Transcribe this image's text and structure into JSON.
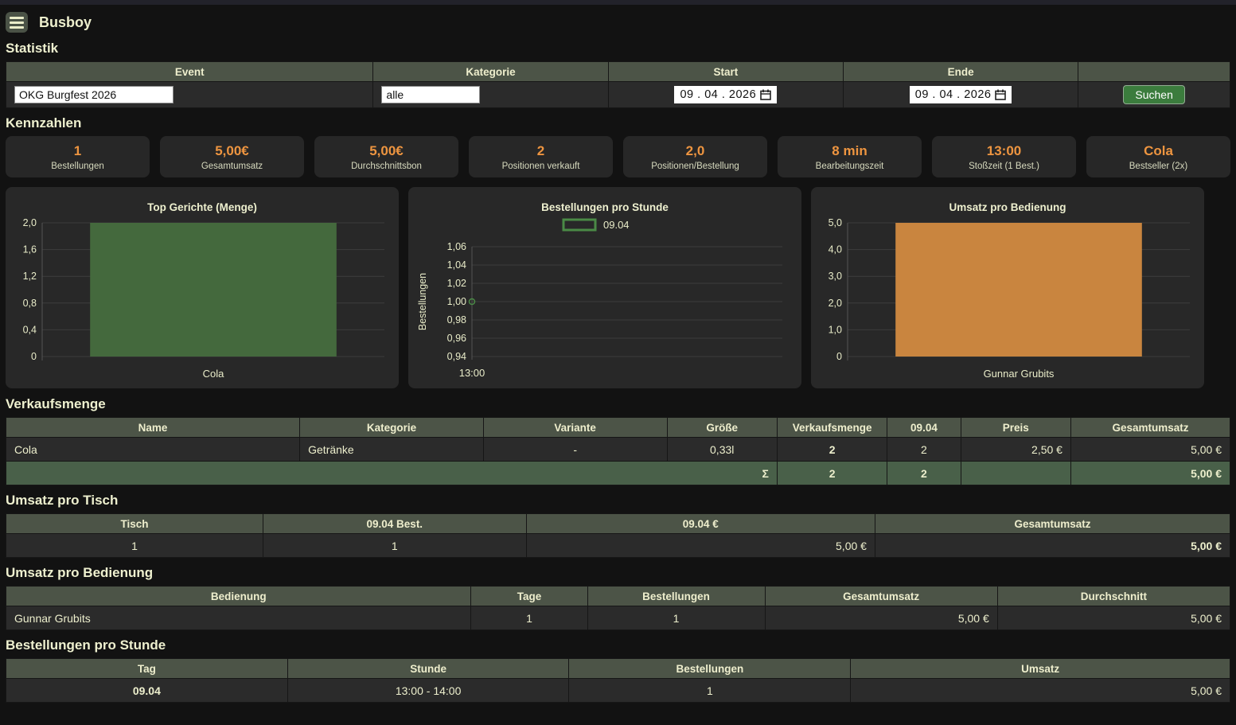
{
  "app": {
    "title": "Busboy"
  },
  "statistik": {
    "heading": "Statistik",
    "search": {
      "headers": [
        "Event",
        "Kategorie",
        "Start",
        "Ende",
        ""
      ],
      "event_value": "OKG Burgfest 2026",
      "kategorie_value": "alle",
      "start_value": "09 . 04 . 2026",
      "ende_value": "09 . 04 . 2026",
      "search_button": "Suchen"
    }
  },
  "kennzahlen": {
    "heading": "Kennzahlen",
    "cards": [
      {
        "value": "1",
        "label": "Bestellungen"
      },
      {
        "value": "5,00€",
        "label": "Gesamtumsatz"
      },
      {
        "value": "5,00€",
        "label": "Durchschnittsbon"
      },
      {
        "value": "2",
        "label": "Positionen verkauft"
      },
      {
        "value": "2,0",
        "label": "Positionen/Bestellung"
      },
      {
        "value": "8 min",
        "label": "Bearbeitungszeit"
      },
      {
        "value": "13:00",
        "label": "Stoßzeit (1 Best.)"
      },
      {
        "value": "Cola",
        "label": "Bestseller (2x)"
      }
    ]
  },
  "chart_data": [
    {
      "type": "bar",
      "title": "Top Gerichte (Menge)",
      "categories": [
        "Cola"
      ],
      "values": [
        2
      ],
      "yticks": [
        "2,0",
        "1,6",
        "1,2",
        "0,8",
        "0,4",
        "0"
      ],
      "ylim": [
        0,
        2
      ],
      "xlabel": "",
      "ylabel": "",
      "grid": true,
      "bar_color": "#44693d"
    },
    {
      "type": "line",
      "title": "Bestellungen pro Stunde",
      "x": [
        "13:00"
      ],
      "series": [
        {
          "name": "09.04",
          "values": [
            1.0
          ]
        }
      ],
      "yticks": [
        "1,06",
        "1,04",
        "1,02",
        "1,00",
        "0,98",
        "0,96",
        "0,94"
      ],
      "ylim": [
        0.94,
        1.06
      ],
      "xlabel": "",
      "ylabel": "Bestellungen",
      "grid": true,
      "legend_position": "top",
      "line_color": "#4a8a46"
    },
    {
      "type": "bar",
      "title": "Umsatz pro Bedienung",
      "categories": [
        "Gunnar Grubits"
      ],
      "values": [
        5
      ],
      "yticks": [
        "5,0",
        "4,0",
        "3,0",
        "2,0",
        "1,0",
        "0"
      ],
      "ylim": [
        0,
        5
      ],
      "xlabel": "",
      "ylabel": "",
      "grid": true,
      "bar_color": "#c9853f"
    }
  ],
  "verkaufsmenge": {
    "heading": "Verkaufsmenge",
    "headers": [
      "Name",
      "Kategorie",
      "Variante",
      "Größe",
      "Verkaufsmenge",
      "09.04",
      "Preis",
      "Gesamtumsatz"
    ],
    "rows": [
      [
        "Cola",
        "Getränke",
        "-",
        "0,33l",
        "2",
        "2",
        "2,50 €",
        "5,00 €"
      ]
    ],
    "sum_row": [
      "Σ",
      "2",
      "2",
      "",
      "5,00 €"
    ]
  },
  "umsatz_pro_tisch": {
    "heading": "Umsatz pro Tisch",
    "headers": [
      "Tisch",
      "09.04 Best.",
      "09.04 €",
      "Gesamtumsatz"
    ],
    "rows": [
      [
        "1",
        "1",
        "5,00 €",
        "5,00 €"
      ]
    ]
  },
  "umsatz_pro_bedienung": {
    "heading": "Umsatz pro Bedienung",
    "headers": [
      "Bedienung",
      "Tage",
      "Bestellungen",
      "Gesamtumsatz",
      "Durchschnitt"
    ],
    "rows": [
      [
        "Gunnar Grubits",
        "1",
        "1",
        "5,00 €",
        "5,00 €"
      ]
    ]
  },
  "bestellungen_pro_stunde": {
    "heading": "Bestellungen pro Stunde",
    "headers": [
      "Tag",
      "Stunde",
      "Bestellungen",
      "Umsatz"
    ],
    "rows": [
      [
        "09.04",
        "13:00 - 14:00",
        "1",
        "5,00 €"
      ]
    ]
  },
  "colors": {
    "accent_orange": "#ee9540",
    "table_header_green": "#4c5447",
    "sum_row_green": "#496049",
    "bar_green": "#44693d",
    "bar_orange": "#c9853f",
    "button_green": "#3b7c3d",
    "text_cream": "#edefcd"
  }
}
